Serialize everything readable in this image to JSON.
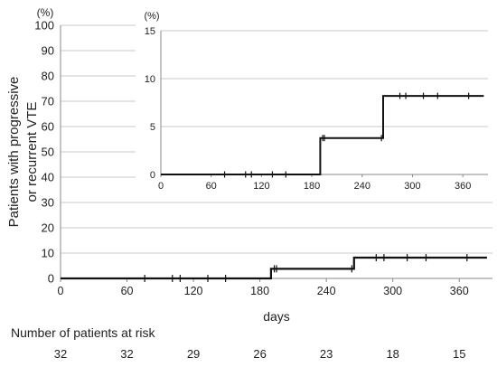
{
  "chart_data": [
    {
      "type": "line",
      "role": "main",
      "unit_label": "(%)",
      "ylabel_line1": "Patients  with  progressive",
      "ylabel_line2": "or  recurrent  VTE",
      "xlabel": "days",
      "ylim": [
        0,
        100
      ],
      "xlim": [
        0,
        390
      ],
      "y_ticks": [
        0,
        10,
        20,
        30,
        40,
        50,
        60,
        70,
        80,
        90,
        100
      ],
      "x_ticks": [
        0,
        60,
        120,
        180,
        240,
        300,
        360
      ],
      "grid": "horizontal",
      "series": [
        {
          "step_points": [
            [
              0,
              0
            ],
            [
              190,
              0
            ],
            [
              190,
              3.8
            ],
            [
              265,
              3.8
            ],
            [
              265,
              8.2
            ],
            [
              385,
              8.2
            ]
          ],
          "censor_marks": [
            [
              76,
              0
            ],
            [
              101,
              0
            ],
            [
              108,
              0
            ],
            [
              133,
              0
            ],
            [
              149,
              0
            ],
            [
              193,
              3.8
            ],
            [
              195,
              3.8
            ],
            [
              263,
              3.8
            ],
            [
              285,
              8.2
            ],
            [
              292,
              8.2
            ],
            [
              313,
              8.2
            ],
            [
              330,
              8.2
            ],
            [
              367,
              8.2
            ]
          ]
        }
      ]
    },
    {
      "type": "line",
      "role": "inset",
      "unit_label": "(%)",
      "ylim": [
        0,
        15
      ],
      "xlim": [
        0,
        390
      ],
      "y_ticks": [
        0,
        5,
        10,
        15
      ],
      "x_ticks": [
        0,
        60,
        120,
        180,
        240,
        300,
        360
      ],
      "grid": "horizontal",
      "series": [
        {
          "step_points": [
            [
              0,
              0
            ],
            [
              190,
              0
            ],
            [
              190,
              3.8
            ],
            [
              265,
              3.8
            ],
            [
              265,
              8.2
            ],
            [
              385,
              8.2
            ]
          ],
          "censor_marks": [
            [
              76,
              0
            ],
            [
              101,
              0
            ],
            [
              108,
              0
            ],
            [
              133,
              0
            ],
            [
              149,
              0
            ],
            [
              193,
              3.8
            ],
            [
              195,
              3.8
            ],
            [
              263,
              3.8
            ],
            [
              285,
              8.2
            ],
            [
              292,
              8.2
            ],
            [
              313,
              8.2
            ],
            [
              330,
              8.2
            ],
            [
              367,
              8.2
            ]
          ]
        }
      ]
    }
  ],
  "risk_table": {
    "title": "Number of patients at risk",
    "counts": [
      "32",
      "32",
      "29",
      "26",
      "23",
      "18",
      "15"
    ]
  }
}
